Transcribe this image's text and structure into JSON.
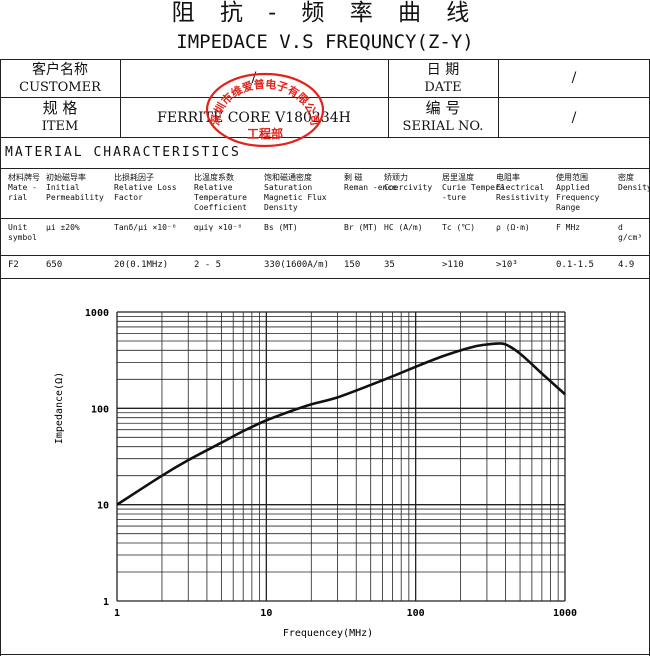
{
  "title_cn": "阻 抗 - 频 率 曲 线",
  "title_en": "IMPEDACE V.S FREQUNCY(Z-Y)",
  "header": {
    "customer_cn": "客户名称",
    "customer_en": "CUSTOMER",
    "customer_value": "/",
    "date_cn": "日 期",
    "date_en": "DATE",
    "date_value": "/",
    "item_cn": "规 格",
    "item_en": "ITEM",
    "item_value": "FERRITE CORE V180234H",
    "serial_cn": "编 号",
    "serial_en": "SERIAL NO.",
    "serial_value": "/"
  },
  "seal": {
    "company": "深圳市维爱普电子有限公司",
    "dept": "工程部",
    "color": "#e2231a"
  },
  "material_title": "MATERIAL CHARACTERISTICS",
  "columns": [
    {
      "cn": "材料牌号",
      "en": "Mate -rial",
      "unit": "Unit symbol",
      "value": "F2"
    },
    {
      "cn": "初始磁导率",
      "en": "Initial Permeability",
      "unit": "μi ±20%",
      "value": "650"
    },
    {
      "cn": "比损耗因子",
      "en": "Relative Loss Factor",
      "unit": "Tanδ/μi ×10⁻⁶",
      "value": "20(0.1MHz)"
    },
    {
      "cn": "比温度系数",
      "en": "Relative Temperature Coefficient",
      "unit": "αμiγ ×10⁻⁶",
      "value": "2 - 5"
    },
    {
      "cn": "饱和磁通密度",
      "en": "Saturation Magnetic Flux Density",
      "unit": "Bs (MT)",
      "value": "330(1600A/m)"
    },
    {
      "cn": "剩 磁",
      "en": "Reman -ence",
      "unit": "Br (MT)",
      "value": "150"
    },
    {
      "cn": "矫顽力",
      "en": "Coercivity",
      "unit": "HC (A/m)",
      "value": "35"
    },
    {
      "cn": "居里温度",
      "en": "Curie Tempera -ture",
      "unit": "Tc (℃)",
      "value": ">110"
    },
    {
      "cn": "电阻率",
      "en": "Electrical Resistivity",
      "unit": "ρ (Ω·m)",
      "value": ">10³"
    },
    {
      "cn": "使用范围",
      "en": "Applied Frequency Range",
      "unit": "F MHz",
      "value": "0.1-1.5"
    },
    {
      "cn": "密度",
      "en": "Density",
      "unit": "d g/cm³",
      "value": "4.9"
    }
  ],
  "chart_data": {
    "type": "line",
    "xlabel": "Frequencey(MHz)",
    "ylabel": "Impedance(Ω)",
    "x_scale": "log",
    "y_scale": "log",
    "xlim": [
      1,
      1000
    ],
    "ylim": [
      1,
      1000
    ],
    "x_ticks": [
      "1",
      "10",
      "100",
      "1000"
    ],
    "y_ticks": [
      "1",
      "10",
      "100",
      "1000"
    ],
    "grid": true,
    "series": [
      {
        "x": [
          1,
          2,
          3,
          5,
          7,
          10,
          15,
          20,
          30,
          50,
          70,
          100,
          150,
          200,
          250,
          300,
          350,
          400,
          500,
          700,
          1000
        ],
        "y": [
          10,
          20,
          29,
          44,
          58,
          75,
          95,
          110,
          130,
          175,
          215,
          270,
          345,
          400,
          440,
          460,
          470,
          460,
          370,
          230,
          140
        ]
      }
    ]
  }
}
